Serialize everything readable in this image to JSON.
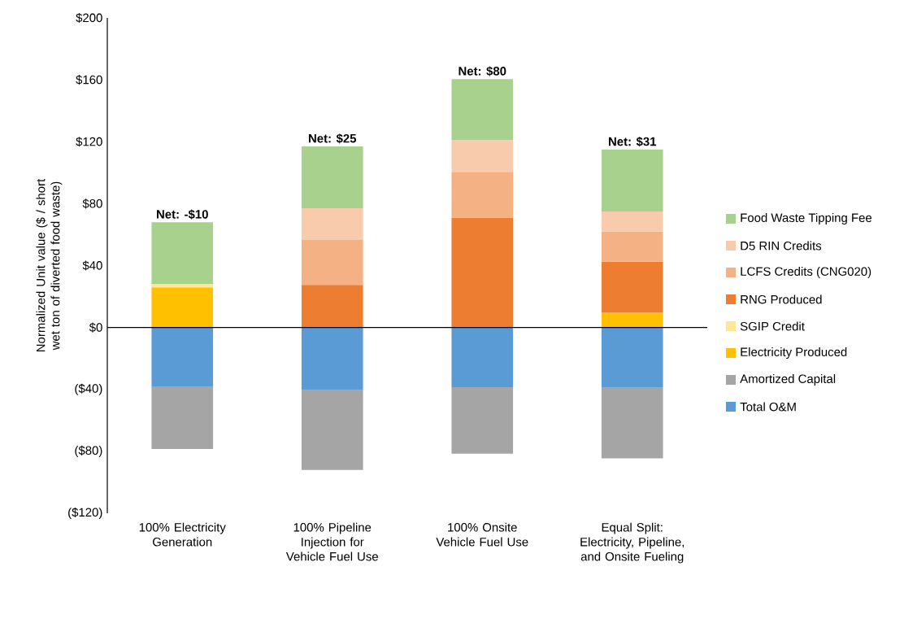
{
  "chart_data": {
    "type": "bar",
    "stacked": true,
    "ylabel": "Normalized Unit value ($ / short wet ton of diverted food waste)",
    "categories": [
      "100% Electricity Generation",
      "100% Pipeline Injection for Vehicle Fuel Use",
      "100% Onsite Vehicle Fuel Use",
      "Equal Split: Electricity, Pipeline, and Onsite Fueling"
    ],
    "series": [
      {
        "name": "Total O&M",
        "color": "#5b9bd5",
        "values": [
          -38,
          -40.5,
          -38.5,
          -39
        ]
      },
      {
        "name": "Amortized Capital",
        "color": "#a5a5a5",
        "values": [
          -40.5,
          -51.5,
          -43,
          -45.5
        ]
      },
      {
        "name": "Electricity Produced",
        "color": "#ffc000",
        "values": [
          26,
          null,
          null,
          9.5
        ]
      },
      {
        "name": "SGIP Credit",
        "color": "#ffe699",
        "values": [
          2,
          null,
          null,
          null
        ]
      },
      {
        "name": "RNG Produced",
        "color": "#ed7d31",
        "values": [
          null,
          27.5,
          71,
          33
        ]
      },
      {
        "name": "LCFS Credits (CNG020)",
        "color": "#f4b183",
        "values": [
          null,
          29,
          29.5,
          19.5
        ]
      },
      {
        "name": "D5 RIN Credits",
        "color": "#f8cbad",
        "values": [
          null,
          20.5,
          20.5,
          13
        ]
      },
      {
        "name": "Food Waste Tipping Fee",
        "color": "#a9d18e",
        "values": [
          40,
          40,
          39.5,
          40
        ]
      }
    ],
    "totals": [
      "Net: -$10",
      "Net: $25",
      "Net: $80",
      "Net: $31"
    ],
    "ylim": [
      -120,
      200
    ],
    "yticks": [
      {
        "value": -120,
        "label": "($120)"
      },
      {
        "value": -80,
        "label": "($80)"
      },
      {
        "value": -40,
        "label": "($40)"
      },
      {
        "value": 0,
        "label": "$0"
      },
      {
        "value": 40,
        "label": "$40"
      },
      {
        "value": 80,
        "label": "$80"
      },
      {
        "value": 120,
        "label": "$120"
      },
      {
        "value": 160,
        "label": "$160"
      },
      {
        "value": 200,
        "label": "$200"
      }
    ],
    "legend": "right"
  }
}
